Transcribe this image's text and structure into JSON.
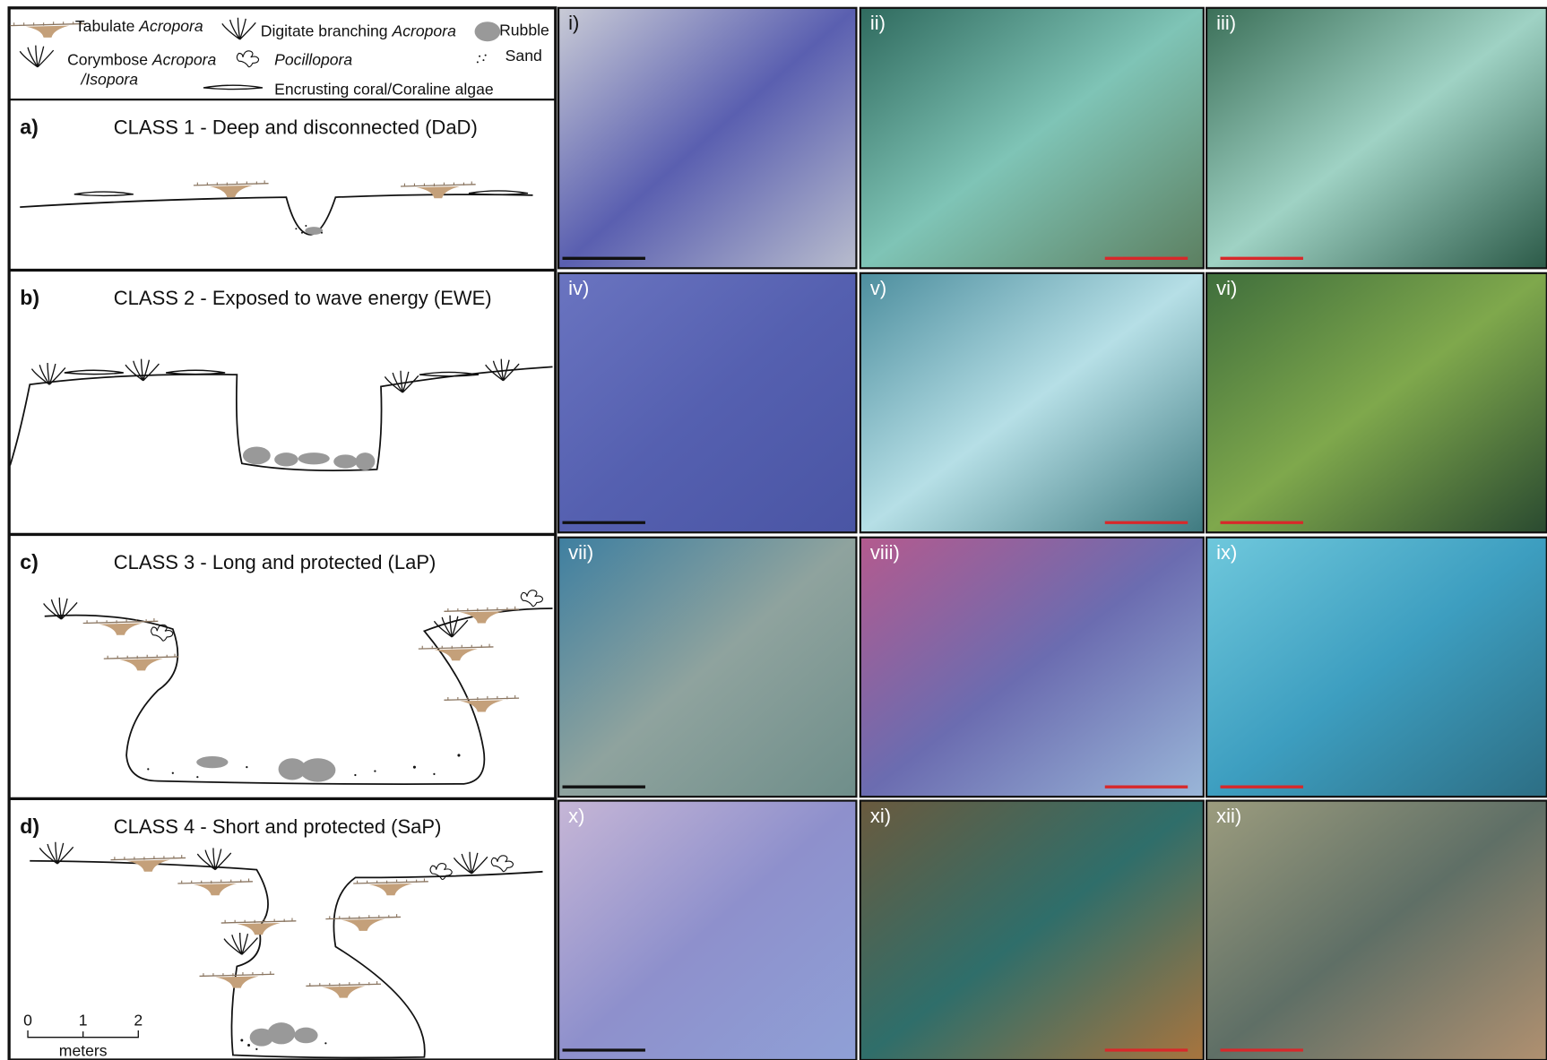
{
  "legend": {
    "tabulate": {
      "text": "Tabulate",
      "italic": "Acropora"
    },
    "digitate": {
      "text": "Digitate branching",
      "italic": "Acropora"
    },
    "rubble": "Rubble",
    "corymbose": {
      "text": "Corymbose",
      "italic": "Acropora",
      "italic2": "/Isopora"
    },
    "pocillopora": "Pocillopora",
    "sand": "Sand",
    "encrusting": "Encrusting coral/Coraline algae"
  },
  "panels": [
    {
      "letter": "a)",
      "title": "CLASS 1 - Deep and disconnected (DaD)"
    },
    {
      "letter": "b)",
      "title": "CLASS 2 - Exposed to wave energy (EWE)"
    },
    {
      "letter": "c)",
      "title": "CLASS 3 - Long and protected (LaP)"
    },
    {
      "letter": "d)",
      "title": "CLASS 4 - Short and protected (SaP)"
    }
  ],
  "photos": [
    "i)",
    "ii)",
    "iii)",
    "iv)",
    "v)",
    "vi)",
    "vii)",
    "viii)",
    "ix)",
    "x)",
    "xi)",
    "xii)"
  ],
  "scale": {
    "ticks": [
      "0",
      "1",
      "2"
    ],
    "unit": "meters"
  }
}
